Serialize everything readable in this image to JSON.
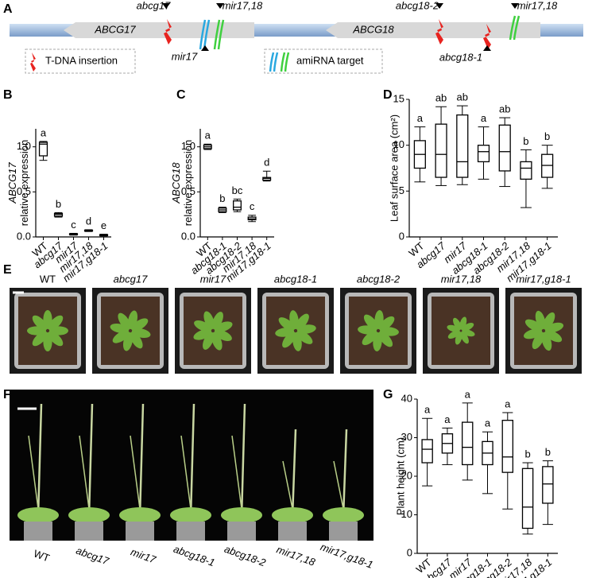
{
  "panel_labels": [
    "A",
    "B",
    "C",
    "D",
    "E",
    "F",
    "G"
  ],
  "gene_map": {
    "genes": [
      "ABCG17",
      "ABCG18"
    ],
    "above": [
      "abcg17",
      "mir17,18",
      "abcg18-2",
      "mir17,18"
    ],
    "below": [
      "mir17",
      "abcg18-1"
    ],
    "legend": [
      "T-DNA insertion",
      "amiRNA target"
    ]
  },
  "rosettes": [
    "WT",
    "abcg17",
    "mir17",
    "abcg18-1",
    "abcg18-2",
    "mir17,18",
    "mir17,g18-1"
  ],
  "plants": [
    "WT",
    "abcg17",
    "mir17",
    "abcg18-1",
    "abcg18-2",
    "mir17,18",
    "mir17,g18-1"
  ],
  "chart_data": [
    {
      "type": "box",
      "y_label": [
        "ABCG17",
        "relative expression"
      ],
      "categories": [
        "WT",
        "abcg17",
        "mir17",
        "mir17,18",
        "mir17,g18-1"
      ],
      "boxes": {
        "min": [
          0.85,
          0.22,
          0.02,
          0.06,
          0.01
        ],
        "q1": [
          0.9,
          0.23,
          0.025,
          0.065,
          0.015
        ],
        "median": [
          1.03,
          0.25,
          0.03,
          0.07,
          0.02
        ],
        "q3": [
          1.05,
          0.26,
          0.035,
          0.075,
          0.025
        ],
        "max": [
          1.06,
          0.27,
          0.04,
          0.08,
          0.03
        ]
      },
      "letters": [
        "a",
        "b",
        "c",
        "d",
        "e"
      ],
      "ylim": [
        0,
        1.2
      ],
      "yticks": [
        {
          "value": 0,
          "label": "0.0"
        },
        {
          "value": 0.5,
          "label": "0.5"
        },
        {
          "value": 1,
          "label": "1.0"
        }
      ]
    },
    {
      "type": "box",
      "y_label": [
        "ABCG18",
        "relative expression"
      ],
      "categories": [
        "WT",
        "abcg18-1",
        "abcg18-2",
        "mir17,18",
        "mir17,g18-1"
      ],
      "boxes": {
        "min": [
          0.97,
          0.27,
          0.28,
          0.17,
          0.62
        ],
        "q1": [
          0.98,
          0.28,
          0.3,
          0.19,
          0.63
        ],
        "median": [
          1.0,
          0.3,
          0.33,
          0.2,
          0.65
        ],
        "q3": [
          1.02,
          0.32,
          0.4,
          0.22,
          0.66
        ],
        "max": [
          1.03,
          0.33,
          0.42,
          0.24,
          0.73
        ]
      },
      "letters": [
        "a",
        "b",
        "bc",
        "c",
        "d"
      ],
      "ylim": [
        0,
        1.2
      ],
      "yticks": [
        {
          "value": 0,
          "label": "0.0"
        },
        {
          "value": 0.5,
          "label": "0.5"
        },
        {
          "value": 1,
          "label": "1.0"
        }
      ]
    },
    {
      "type": "box",
      "y_label": [
        "Leaf surface area (cm²)"
      ],
      "categories": [
        "WT",
        "abcg17",
        "mir17",
        "abcg18-1",
        "abcg18-2",
        "mir17,18",
        "mir17,g18-1"
      ],
      "boxes": {
        "min": [
          6,
          5.6,
          5.7,
          6.3,
          5.5,
          3.2,
          5.3
        ],
        "q1": [
          7.5,
          6.5,
          6.5,
          8.2,
          7.2,
          6.3,
          6.5
        ],
        "median": [
          9,
          9,
          8.2,
          9.3,
          9.3,
          7.5,
          7.8
        ],
        "q3": [
          10.5,
          12.3,
          13.3,
          10,
          12.2,
          8.2,
          9
        ],
        "max": [
          12,
          14.2,
          14.3,
          12,
          13,
          9.5,
          10
        ]
      },
      "letters": [
        "a",
        "ab",
        "ab",
        "a",
        "ab",
        "b",
        "b"
      ],
      "ylim": [
        0,
        15
      ],
      "yticks": [
        0,
        5,
        10,
        15
      ]
    },
    {
      "type": "box",
      "y_label": [
        "Plant height (cm)"
      ],
      "categories": [
        "WT",
        "abcg17",
        "mir17",
        "abcg18-1",
        "abcg18-2",
        "mir17,18",
        "mir17,g18-1"
      ],
      "boxes": {
        "min": [
          17.5,
          23,
          19,
          15.5,
          11.5,
          5,
          7.5
        ],
        "q1": [
          23.5,
          26,
          23,
          23,
          21,
          6.5,
          13
        ],
        "median": [
          27,
          28.5,
          27.5,
          26,
          25,
          12,
          18
        ],
        "q3": [
          29.5,
          31,
          34,
          29,
          34.5,
          22,
          22.5
        ],
        "max": [
          35,
          32.5,
          39,
          31.5,
          36.5,
          23.5,
          24
        ]
      },
      "letters": [
        "a",
        "a",
        "a",
        "a",
        "a",
        "b",
        "b"
      ],
      "ylim": [
        0,
        40
      ],
      "yticks": [
        0,
        10,
        20,
        30,
        40
      ]
    }
  ]
}
